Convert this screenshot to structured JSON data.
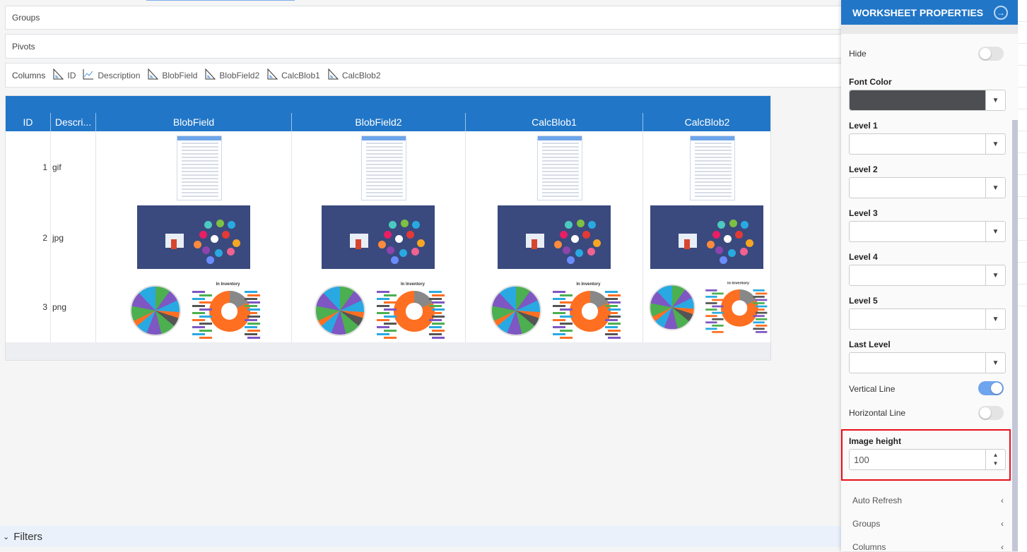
{
  "bars": {
    "groups": "Groups",
    "pivots": "Pivots",
    "columns_label": "Columns"
  },
  "column_chips": [
    {
      "label": "ID",
      "icon": "ruler-icon"
    },
    {
      "label": "Description",
      "icon": "line-chart-icon"
    },
    {
      "label": "BlobField",
      "icon": "ruler-icon"
    },
    {
      "label": "BlobField2",
      "icon": "ruler-icon"
    },
    {
      "label": "CalcBlob1",
      "icon": "ruler-icon"
    },
    {
      "label": "CalcBlob2",
      "icon": "ruler-icon"
    }
  ],
  "grid": {
    "headers": [
      "ID",
      "Descri...",
      "BlobField",
      "BlobField2",
      "CalcBlob1",
      "CalcBlob2"
    ],
    "rows": [
      {
        "id": "1",
        "description": "gif",
        "image": "screenshot"
      },
      {
        "id": "2",
        "description": "jpg",
        "image": "banner"
      },
      {
        "id": "3",
        "description": "png",
        "image": "charts",
        "caption": "In Inventory"
      }
    ]
  },
  "filters": {
    "label": "Filters"
  },
  "panel": {
    "title": "WORKSHEET PROPERTIES",
    "hide": {
      "label": "Hide",
      "on": false
    },
    "font_color": {
      "label": "Font Color",
      "value": "#4d4e52"
    },
    "levels": [
      {
        "label": "Level 1"
      },
      {
        "label": "Level 2"
      },
      {
        "label": "Level 3"
      },
      {
        "label": "Level 4"
      },
      {
        "label": "Level 5"
      },
      {
        "label": "Last Level"
      }
    ],
    "vertical_line": {
      "label": "Vertical Line",
      "on": true
    },
    "horizontal_line": {
      "label": "Horizontal Line",
      "on": false
    },
    "image_height": {
      "label": "Image height",
      "value": "100"
    },
    "sections": [
      "Auto Refresh",
      "Groups",
      "Columns"
    ]
  },
  "colors": {
    "accent": "#2176c7",
    "highlight": "#e8101a"
  }
}
